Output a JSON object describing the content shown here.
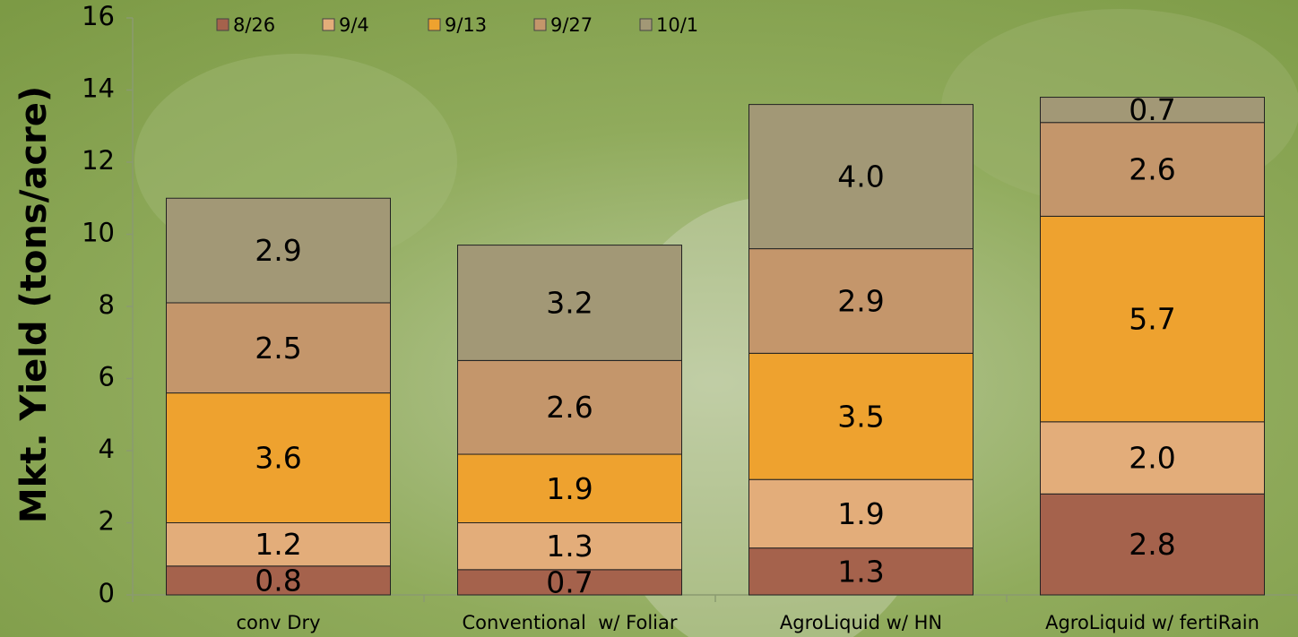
{
  "chart_data": {
    "type": "stacked_bar",
    "y_label": "Mkt. Yield (tons/acre)",
    "categories": [
      "conv Dry",
      "Conventional  w/ Foliar",
      "AgroLiquid w/ HN",
      "AgroLiquid w/ fertiRain"
    ],
    "series": [
      {
        "name": "8/26",
        "color": "#a5624c",
        "values": [
          0.8,
          0.7,
          1.3,
          2.8
        ],
        "value_labels": [
          "0.8",
          "0.7",
          "1.3",
          "2.8"
        ]
      },
      {
        "name": "9/4",
        "color": "#e3ad7a",
        "values": [
          1.2,
          1.3,
          1.9,
          2.0
        ],
        "value_labels": [
          "1.2",
          "1.3",
          "1.9",
          "2.0"
        ]
      },
      {
        "name": "9/13",
        "color": "#eea22f",
        "values": [
          3.6,
          1.9,
          3.5,
          5.7
        ],
        "value_labels": [
          "3.6",
          "1.9",
          "3.5",
          "5.7"
        ]
      },
      {
        "name": "9/27",
        "color": "#c4966b",
        "values": [
          2.5,
          2.6,
          2.9,
          2.6
        ],
        "value_labels": [
          "2.5",
          "2.6",
          "2.9",
          "2.6"
        ]
      },
      {
        "name": "10/1",
        "color": "#a29876",
        "values": [
          2.9,
          3.2,
          4.0,
          0.7
        ],
        "value_labels": [
          "2.9",
          "3.2",
          "4.0",
          "0.7"
        ]
      }
    ],
    "ylim": [
      0,
      16
    ],
    "yticks": [
      0,
      2,
      4,
      6,
      8,
      10,
      12,
      14,
      16
    ],
    "legend": "top"
  }
}
